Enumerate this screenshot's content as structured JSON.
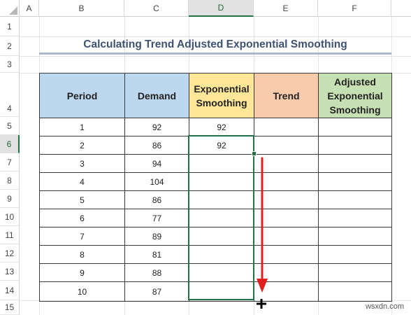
{
  "columns": [
    "A",
    "B",
    "C",
    "D",
    "E",
    "F"
  ],
  "selected_column": "D",
  "rows": [
    "1",
    "2",
    "3",
    "4",
    "5",
    "6",
    "7",
    "8",
    "9",
    "10",
    "11",
    "12",
    "13",
    "14",
    "15"
  ],
  "selected_row": "6",
  "title": "Calculating Trend Adjusted Exponential Smoothing",
  "table": {
    "headers": [
      "Period",
      "Demand",
      "Exponential Smoothing",
      "Trend",
      "Adjusted Exponential Smoothing"
    ],
    "rows": [
      {
        "period": "1",
        "demand": "92",
        "smoothing": "92",
        "trend": "",
        "adjusted": ""
      },
      {
        "period": "2",
        "demand": "86",
        "smoothing": "92",
        "trend": "",
        "adjusted": ""
      },
      {
        "period": "3",
        "demand": "94",
        "smoothing": "",
        "trend": "",
        "adjusted": ""
      },
      {
        "period": "4",
        "demand": "104",
        "smoothing": "",
        "trend": "",
        "adjusted": ""
      },
      {
        "period": "5",
        "demand": "86",
        "smoothing": "",
        "trend": "",
        "adjusted": ""
      },
      {
        "period": "6",
        "demand": "77",
        "smoothing": "",
        "trend": "",
        "adjusted": ""
      },
      {
        "period": "7",
        "demand": "89",
        "smoothing": "",
        "trend": "",
        "adjusted": ""
      },
      {
        "period": "8",
        "demand": "81",
        "smoothing": "",
        "trend": "",
        "adjusted": ""
      },
      {
        "period": "9",
        "demand": "88",
        "smoothing": "",
        "trend": "",
        "adjusted": ""
      },
      {
        "period": "10",
        "demand": "87",
        "smoothing": "",
        "trend": "",
        "adjusted": ""
      }
    ]
  },
  "selection": {
    "range": "D6:D14",
    "color": "#217346"
  },
  "drag_arrow": {
    "color": "#e02020",
    "icon": "down-arrow-icon"
  },
  "cursor": {
    "icon": "crosshair-cursor-icon"
  },
  "watermark": "wsxdn.com"
}
